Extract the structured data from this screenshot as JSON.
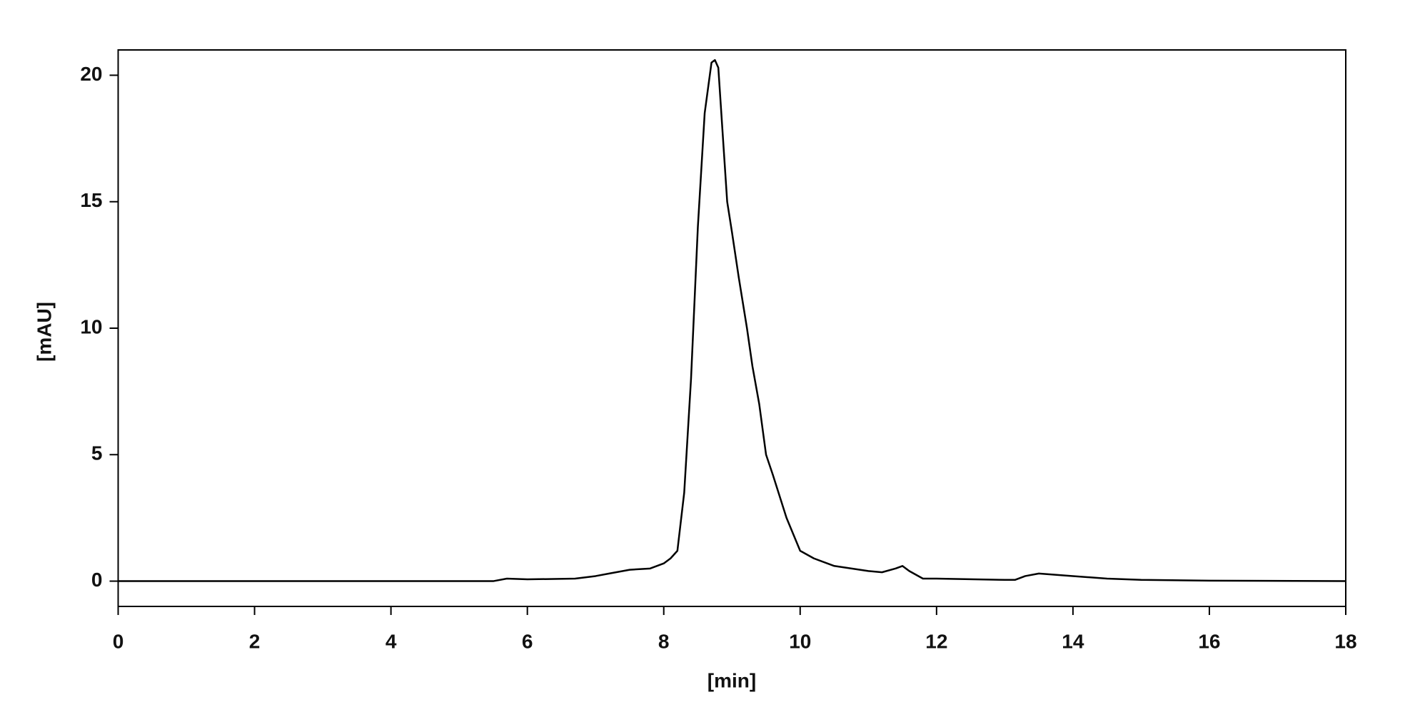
{
  "chart_data": {
    "type": "line",
    "x_label": "[min]",
    "y_label": "[mAU]",
    "xlim": [
      0,
      18
    ],
    "xticks": [
      0,
      2,
      4,
      6,
      8,
      10,
      12,
      14,
      16,
      18
    ],
    "ylim": [
      -1,
      21
    ],
    "yticks": [
      0,
      5,
      10,
      15,
      20
    ],
    "grid": false,
    "series": [
      {
        "color": "#000000",
        "x": [
          0,
          1,
          2,
          3,
          4,
          5,
          5.5,
          5.7,
          6,
          6.7,
          7,
          7.2,
          7.5,
          7.8,
          8.0,
          8.1,
          8.2,
          8.3,
          8.4,
          8.5,
          8.6,
          8.7,
          8.75,
          8.8,
          8.93,
          9.0,
          9.1,
          9.22,
          9.3,
          9.4,
          9.5,
          9.6,
          9.8,
          10.0,
          10.2,
          10.5,
          11.0,
          11.2,
          11.4,
          11.5,
          11.6,
          11.8,
          12.0,
          13.0,
          13.15,
          13.3,
          13.5,
          14.0,
          14.5,
          15.0,
          16.0,
          18.0
        ],
        "values": [
          0,
          0,
          0,
          0,
          0,
          0,
          0,
          0.1,
          0.07,
          0.1,
          0.2,
          0.3,
          0.45,
          0.5,
          0.7,
          0.9,
          1.2,
          3.5,
          8,
          14,
          18.5,
          20.5,
          20.6,
          20.3,
          15,
          13.8,
          12,
          10,
          8.5,
          7,
          5.0,
          4.2,
          2.5,
          1.2,
          0.9,
          0.6,
          0.4,
          0.35,
          0.5,
          0.6,
          0.4,
          0.1,
          0.1,
          0.05,
          0.05,
          0.2,
          0.3,
          0.2,
          0.1,
          0.05,
          0.02,
          0
        ]
      }
    ]
  }
}
